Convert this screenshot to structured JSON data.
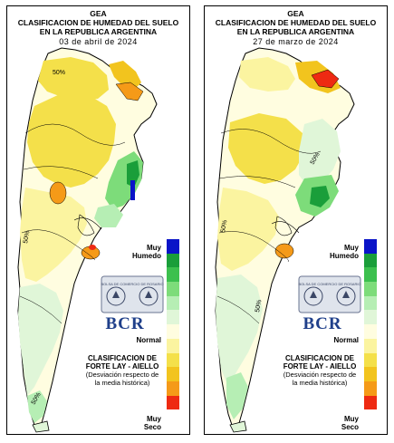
{
  "panels": [
    {
      "title_line1": "GEA",
      "title_line2": "CLASIFICACION DE HUMEDAD DEL SUELO",
      "title_line3": "EN LA REPUBLICA ARGENTINA",
      "date": "03 de abril de 2024",
      "legend_top": "Muy",
      "legend_top2": "Humedo",
      "legend_mid": "Normal",
      "legend_bottom": "Muy",
      "legend_bottom2": "Seco",
      "classification_title1": "CLASIFICACION DE",
      "classification_title2": "FORTE LAY - AIELLO",
      "classification_sub1": "(Desviación respecto de",
      "classification_sub2": "la media histórica)",
      "logo_text": "BCR",
      "seal_text": "BOLSA DE COMERCIO DE ROSARIO",
      "contour_labels": [
        "50%",
        "50%",
        "50%"
      ]
    },
    {
      "title_line1": "GEA",
      "title_line2": "CLASIFICACION DE HUMEDAD DEL SUELO",
      "title_line3": "EN LA REPUBLICA ARGENTINA",
      "date": "27 de marzo de 2024",
      "legend_top": "Muy",
      "legend_top2": "Humedo",
      "legend_mid": "Normal",
      "legend_bottom": "Muy",
      "legend_bottom2": "Seco",
      "classification_title1": "CLASIFICACION DE",
      "classification_title2": "FORTE LAY - AIELLO",
      "classification_sub1": "(Desviación respecto de",
      "classification_sub2": "la media histórica)",
      "logo_text": "BCR",
      "seal_text": "BOLSA DE COMERCIO DE ROSARIO",
      "contour_labels": [
        "50%",
        "50%",
        "50%"
      ]
    }
  ],
  "legend_colors": [
    "#0a14c8",
    "#1a9e3a",
    "#3cc04e",
    "#7ddc7a",
    "#b6eeb4",
    "#e0f6d8",
    "#fffde0",
    "#fbf4a0",
    "#f4e04a",
    "#f2c41e",
    "#f59a18",
    "#ee2a12"
  ]
}
